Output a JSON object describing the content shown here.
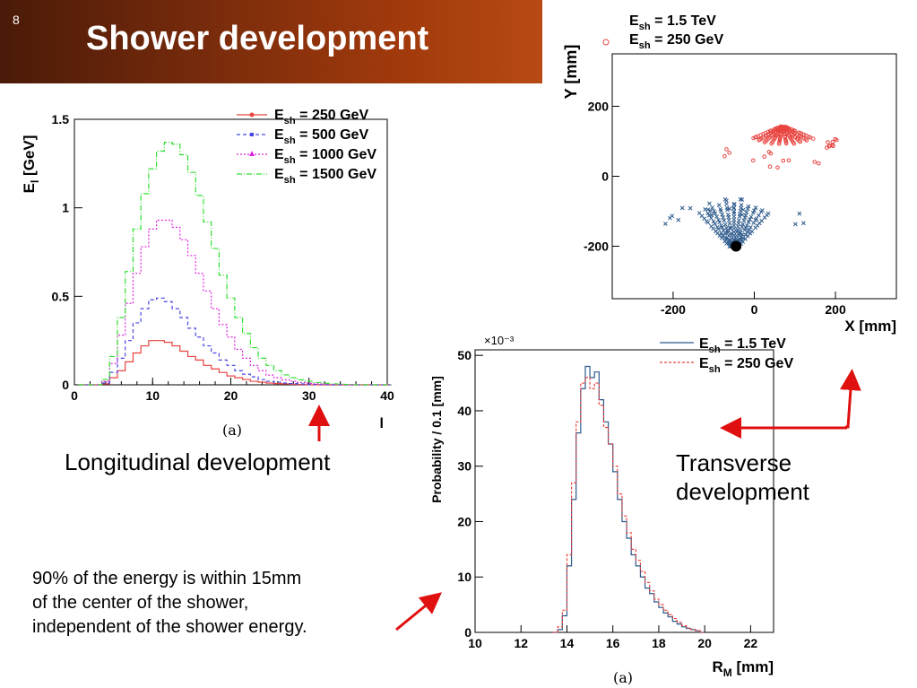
{
  "slide": {
    "number": "8",
    "title": "Shower development"
  },
  "captions": {
    "longitudinal": "Longitudinal development",
    "transverse_line1": "Transverse",
    "transverse_line2": "development",
    "note_lines": [
      "90% of the energy is within 15mm",
      "of the center of the shower,",
      "independent of the shower energy."
    ],
    "sub_a_left": "(a)",
    "sub_a_bottom": "(a)"
  },
  "colors": {
    "banner": "#8a330e",
    "arrow": "#e01010",
    "red": "#e8443f",
    "blue": "#2d5a8c",
    "magenta": "#e020e0",
    "green": "#30e030"
  },
  "chart_data": [
    {
      "type": "line",
      "xlabel": "l",
      "ylabel": "E_l [GeV]",
      "xlim": [
        0,
        40
      ],
      "ylim": [
        0,
        1.5
      ],
      "x_ticks": [
        "0",
        "10",
        "20",
        "30",
        "40"
      ],
      "y_ticks": [
        "0",
        "0.5",
        "1",
        "1.5"
      ],
      "legend_position": "top-right",
      "x": [
        1,
        2,
        3,
        4,
        5,
        6,
        7,
        8,
        9,
        10,
        11,
        12,
        13,
        14,
        15,
        16,
        17,
        18,
        19,
        20,
        21,
        22,
        23,
        24,
        25,
        26,
        27,
        28,
        29,
        30,
        31,
        32,
        33,
        34,
        35,
        36,
        37,
        38,
        39,
        40
      ],
      "series": [
        {
          "name": "E_sh = 250 GeV",
          "legend_main": "E",
          "legend_sub": "sh",
          "legend_rest": " = 250 GeV",
          "color": "#e8443f",
          "marker": "circle",
          "dash": "",
          "values": [
            0,
            0,
            0,
            0.005,
            0.04,
            0.08,
            0.13,
            0.18,
            0.22,
            0.25,
            0.25,
            0.24,
            0.22,
            0.19,
            0.16,
            0.14,
            0.11,
            0.09,
            0.07,
            0.05,
            0.04,
            0.03,
            0.02,
            0.015,
            0.01,
            0.007,
            0.005,
            0.003,
            0.002,
            0.001,
            0,
            0,
            0,
            0,
            0,
            0,
            0,
            0,
            0,
            0
          ]
        },
        {
          "name": "E_sh = 500 GeV",
          "legend_main": "E",
          "legend_sub": "sh",
          "legend_rest": " = 500 GeV",
          "color": "#4646e6",
          "marker": "square",
          "dash": "4,3",
          "values": [
            0,
            0,
            0,
            0.01,
            0.07,
            0.15,
            0.25,
            0.35,
            0.43,
            0.48,
            0.49,
            0.47,
            0.43,
            0.38,
            0.32,
            0.27,
            0.22,
            0.18,
            0.14,
            0.11,
            0.08,
            0.06,
            0.045,
            0.03,
            0.02,
            0.015,
            0.01,
            0.007,
            0.005,
            0.003,
            0.002,
            0.001,
            0,
            0,
            0,
            0,
            0,
            0,
            0,
            0
          ]
        },
        {
          "name": "E_sh = 1000 GeV",
          "legend_main": "E",
          "legend_sub": "sh",
          "legend_rest": " = 1000 GeV",
          "color": "#e020e0",
          "marker": "triangle",
          "dash": "2,2",
          "values": [
            0,
            0,
            0,
            0.02,
            0.12,
            0.28,
            0.46,
            0.63,
            0.78,
            0.88,
            0.93,
            0.93,
            0.89,
            0.82,
            0.73,
            0.63,
            0.53,
            0.43,
            0.34,
            0.27,
            0.2,
            0.15,
            0.11,
            0.08,
            0.055,
            0.04,
            0.028,
            0.02,
            0.013,
            0.009,
            0.006,
            0.004,
            0.002,
            0.001,
            0,
            0,
            0,
            0,
            0,
            0
          ]
        },
        {
          "name": "E_sh = 1500 GeV",
          "legend_main": "E",
          "legend_sub": "sh",
          "legend_rest": " = 1500 GeV",
          "color": "#30e030",
          "marker": "none",
          "dash": "6,2,1,2",
          "values": [
            0,
            0,
            0,
            0.03,
            0.16,
            0.38,
            0.64,
            0.88,
            1.08,
            1.22,
            1.32,
            1.37,
            1.36,
            1.3,
            1.2,
            1.07,
            0.92,
            0.77,
            0.62,
            0.49,
            0.38,
            0.29,
            0.21,
            0.15,
            0.11,
            0.08,
            0.056,
            0.04,
            0.028,
            0.02,
            0.013,
            0.009,
            0.006,
            0.004,
            0.002,
            0.001,
            0,
            0,
            0,
            0
          ]
        }
      ]
    },
    {
      "type": "scatter",
      "xlabel": "X [mm]",
      "ylabel": "Y [mm]",
      "xlim": [
        -350,
        350
      ],
      "ylim": [
        -350,
        350
      ],
      "x_ticks": [
        "-200",
        "0",
        "200"
      ],
      "y_ticks": [
        "-200",
        "0",
        "200"
      ],
      "legend_position": "top-left",
      "legend": [
        {
          "main": "E",
          "sub": "sh",
          "rest": " = 1.5 TeV"
        },
        {
          "main": "E",
          "sub": "sh",
          "rest": " = 250 GeV"
        }
      ],
      "series": [
        {
          "name": "E_sh = 1.5 TeV",
          "color": "#2d5a8c",
          "marker": "x",
          "fan_center": [
            -50,
            -215
          ],
          "fan_radius_range": [
            20,
            150
          ],
          "fan_angle_range_deg": [
            55,
            125
          ]
        },
        {
          "name": "E_sh = 250 GeV",
          "color": "#e8443f",
          "marker": "circle",
          "fan_center": [
            70,
            145
          ],
          "fan_radius_range": [
            10,
            105
          ],
          "fan_angle_range_deg": [
            45,
            135
          ]
        }
      ],
      "marker_point": [
        -45,
        -200
      ]
    },
    {
      "type": "line",
      "xlabel": "R_M [mm]",
      "ylabel": "Probability / 0.1 [mm]",
      "y_multiplier": "×10⁻³",
      "xlim": [
        10,
        23
      ],
      "ylim": [
        0,
        51
      ],
      "x_ticks": [
        "10",
        "12",
        "14",
        "16",
        "18",
        "20",
        "22"
      ],
      "y_ticks": [
        "0",
        "10",
        "20",
        "30",
        "40",
        "50"
      ],
      "legend_position": "top-right",
      "legend": [
        {
          "main": "E",
          "sub": "sh",
          "rest": " = 1.5 TeV"
        },
        {
          "main": "E",
          "sub": "sh",
          "rest": " = 250 GeV"
        }
      ],
      "x": [
        13.5,
        13.7,
        13.9,
        14.1,
        14.3,
        14.5,
        14.7,
        14.9,
        15.1,
        15.3,
        15.5,
        15.7,
        15.9,
        16.1,
        16.3,
        16.5,
        16.7,
        16.9,
        17.1,
        17.3,
        17.5,
        17.7,
        17.9,
        18.1,
        18.3,
        18.5,
        18.7,
        18.9,
        19.1,
        19.3,
        19.5,
        19.7,
        19.9
      ],
      "series": [
        {
          "name": "E_sh = 1.5 TeV",
          "color": "#2d5a8c",
          "dash": "",
          "values": [
            0,
            0.5,
            3,
            12,
            24,
            36,
            44,
            48,
            46,
            47,
            42,
            38,
            34,
            29,
            24,
            20,
            17,
            14,
            12,
            10,
            8,
            7,
            5.5,
            4.5,
            3.5,
            2.8,
            2,
            1.5,
            1,
            0.7,
            0.5,
            0.3,
            0
          ]
        },
        {
          "name": "E_sh = 250 GeV",
          "color": "#e8443f",
          "dash": "3,2",
          "values": [
            0,
            1,
            4,
            14,
            27,
            38,
            45,
            46,
            44,
            45,
            41,
            37,
            34,
            30,
            25,
            21,
            18,
            15,
            13,
            11,
            9,
            7.5,
            6,
            5,
            4,
            3.2,
            2.5,
            1.8,
            1.2,
            0.8,
            0.5,
            0.3,
            0
          ]
        }
      ]
    }
  ]
}
